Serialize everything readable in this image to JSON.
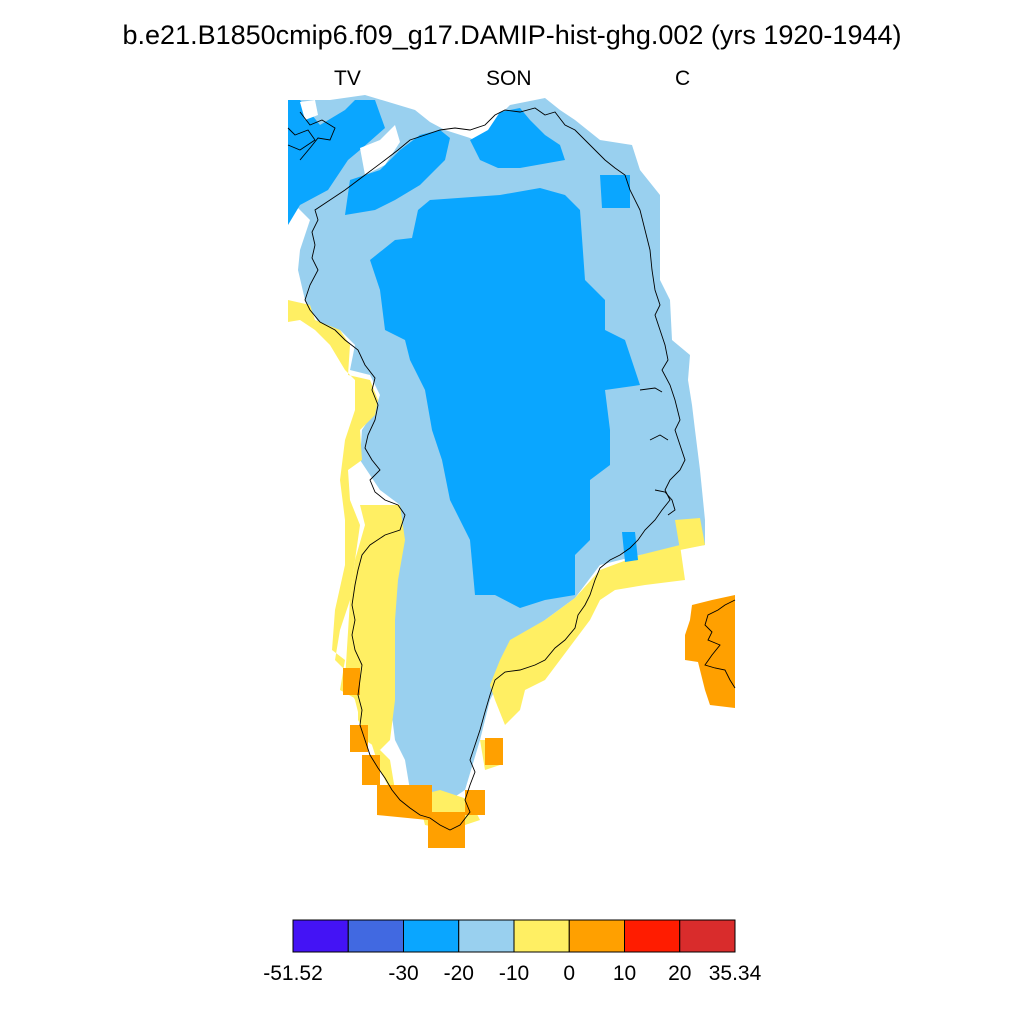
{
  "title": "b.e21.B1850cmip6.f09_g17.DAMIP-hist-ghg.002 (yrs 1920-1944)",
  "left_label": "TV",
  "center_label": "SON",
  "right_label": "C",
  "colors": {
    "c0": "#4413f5",
    "c1": "#4169e1",
    "c2": "#0aa6ff",
    "c3": "#99d0ef",
    "c4": "#ffef63",
    "c5": "#ffa000",
    "c6": "#ff1c00",
    "c7": "#d92c2c",
    "coast": "#000000"
  },
  "colorbar": {
    "bins": [
      "c0",
      "c1",
      "c2",
      "c3",
      "c4",
      "c5",
      "c6",
      "c7"
    ],
    "ticks": [
      "-51.52",
      "",
      "-30",
      "-20",
      "-10",
      "0",
      "10",
      "20",
      "35.34"
    ]
  }
}
